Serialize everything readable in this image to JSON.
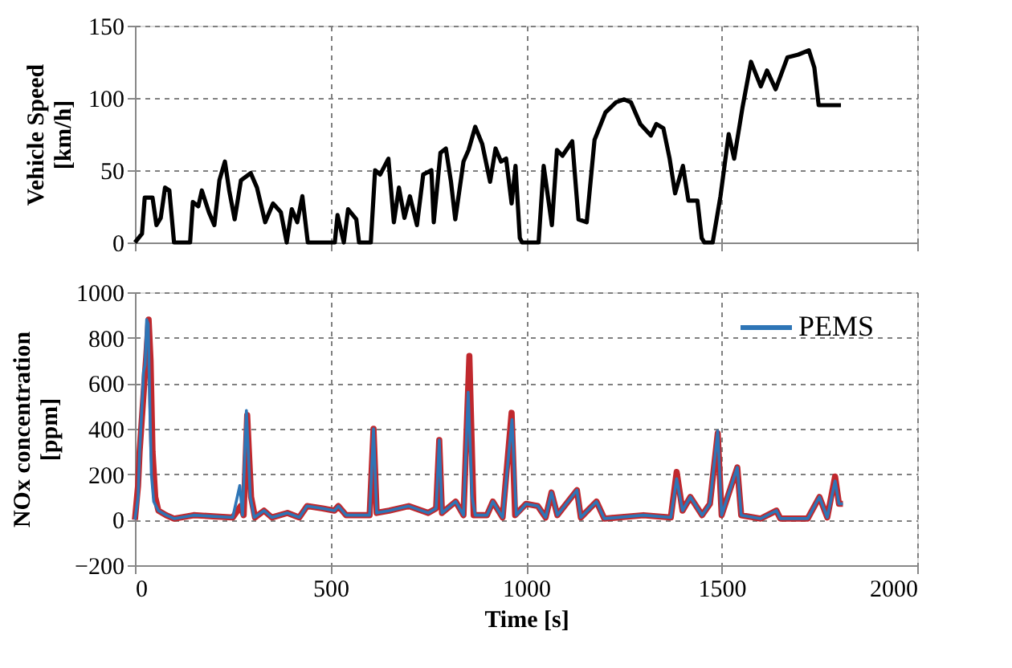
{
  "chart_data": [
    {
      "type": "line",
      "ylabel": "Vehicle Speed [km/h]",
      "xlim": [
        0,
        2000
      ],
      "xticks": [
        0,
        500,
        1000,
        1500,
        2000
      ],
      "ylim": [
        0,
        150
      ],
      "yticks": [
        0,
        50,
        100,
        150
      ],
      "grid": true,
      "tick_labels": "y",
      "line_style": "solid",
      "marker": "none",
      "series": [
        {
          "color": "#000000",
          "x": [
            0,
            18,
            25,
            45,
            55,
            66,
            77,
            88,
            100,
            141,
            148,
            162,
            171,
            189,
            203,
            216,
            230,
            241,
            255,
            271,
            296,
            312,
            333,
            353,
            373,
            388,
            401,
            415,
            428,
            442,
            511,
            518,
            534,
            545,
            566,
            573,
            603,
            614,
            627,
            648,
            662,
            675,
            689,
            703,
            721,
            737,
            758,
            764,
            781,
            795,
            808,
            819,
            840,
            853,
            870,
            888,
            908,
            922,
            936,
            949,
            963,
            973,
            984,
            990,
            1032,
            1045,
            1066,
            1079,
            1093,
            1118,
            1134,
            1155,
            1175,
            1203,
            1230,
            1251,
            1268,
            1292,
            1319,
            1333,
            1351,
            1367,
            1381,
            1401,
            1415,
            1438,
            1449,
            1456,
            1477,
            1497,
            1518,
            1532,
            1553,
            1575,
            1600,
            1616,
            1638,
            1668,
            1696,
            1723,
            1737,
            1748,
            1805
          ],
          "values": [
            0,
            6,
            31,
            31,
            12,
            17,
            38,
            36,
            0,
            0,
            28,
            25,
            36,
            21,
            12,
            43,
            56,
            36,
            16,
            43,
            48,
            38,
            14,
            27,
            21,
            0,
            23,
            14,
            32,
            0,
            0,
            19,
            0,
            23,
            16,
            0,
            0,
            50,
            47,
            58,
            14,
            38,
            17,
            32,
            12,
            47,
            50,
            14,
            62,
            65,
            42,
            16,
            56,
            64,
            80,
            68,
            42,
            65,
            56,
            58,
            27,
            53,
            3,
            0,
            0,
            53,
            12,
            64,
            60,
            70,
            16,
            14,
            71,
            90,
            97,
            99,
            97,
            82,
            74,
            82,
            79,
            58,
            34,
            53,
            29,
            29,
            3,
            0,
            0,
            32,
            75,
            58,
            93,
            125,
            108,
            119,
            106,
            128,
            130,
            133,
            121,
            95,
            95
          ]
        }
      ]
    },
    {
      "type": "line",
      "xlabel": "Time [s]",
      "ylabel": "NOx concentration [ppm]",
      "xlim": [
        0,
        2000
      ],
      "xticks": [
        0,
        500,
        1000,
        1500,
        2000
      ],
      "ylim": [
        -200,
        1000
      ],
      "yticks": [
        -200,
        0,
        200,
        400,
        600,
        800,
        1000
      ],
      "grid": true,
      "legend": "top right",
      "line_style": "solid",
      "marker": "none",
      "series": [
        {
          "color": "#c0282d",
          "x": [
            0,
            8,
            12,
            18,
            24,
            29,
            35,
            40,
            45,
            52,
            60,
            80,
            100,
            150,
            200,
            250,
            270,
            278,
            287,
            297,
            307,
            330,
            350,
            390,
            420,
            440,
            480,
            510,
            520,
            540,
            600,
            610,
            618,
            650,
            700,
            750,
            770,
            778,
            785,
            820,
            840,
            855,
            866,
            900,
            915,
            940,
            963,
            972,
            1000,
            1030,
            1050,
            1065,
            1080,
            1130,
            1140,
            1180,
            1200,
            1300,
            1370,
            1385,
            1400,
            1420,
            1450,
            1470,
            1490,
            1500,
            1540,
            1550,
            1600,
            1640,
            1650,
            1720,
            1750,
            1770,
            1790,
            1800,
            1810
          ],
          "values": [
            0,
            150,
            300,
            450,
            600,
            720,
            880,
            700,
            300,
            100,
            40,
            20,
            5,
            20,
            15,
            10,
            60,
            20,
            460,
            100,
            10,
            40,
            10,
            30,
            10,
            60,
            50,
            40,
            60,
            20,
            20,
            400,
            30,
            40,
            60,
            30,
            50,
            350,
            30,
            80,
            20,
            720,
            20,
            20,
            80,
            10,
            470,
            20,
            70,
            60,
            10,
            120,
            20,
            130,
            10,
            80,
            5,
            20,
            10,
            210,
            40,
            100,
            20,
            70,
            380,
            20,
            230,
            20,
            5,
            40,
            5,
            5,
            100,
            10,
            190,
            70,
            70
          ]
        },
        {
          "name": "PEMS",
          "color": "#2e75b6",
          "x": [
            0,
            8,
            12,
            18,
            22,
            26,
            30,
            34,
            38,
            42,
            48,
            60,
            80,
            100,
            150,
            200,
            250,
            268,
            275,
            285,
            295,
            305,
            330,
            350,
            390,
            420,
            440,
            480,
            510,
            520,
            540,
            600,
            610,
            618,
            650,
            700,
            750,
            770,
            778,
            785,
            820,
            840,
            852,
            862,
            870,
            900,
            915,
            940,
            964,
            975,
            1000,
            1030,
            1050,
            1065,
            1080,
            1130,
            1140,
            1180,
            1200,
            1300,
            1370,
            1385,
            1400,
            1420,
            1450,
            1470,
            1490,
            1500,
            1540,
            1550,
            1600,
            1640,
            1650,
            1720,
            1750,
            1770,
            1790,
            1800,
            1810
          ],
          "values": [
            0,
            100,
            300,
            500,
            650,
            680,
            880,
            860,
            500,
            200,
            80,
            40,
            20,
            5,
            20,
            15,
            10,
            150,
            20,
            480,
            100,
            10,
            40,
            10,
            30,
            10,
            60,
            50,
            40,
            60,
            20,
            20,
            400,
            30,
            40,
            60,
            30,
            50,
            350,
            30,
            80,
            20,
            560,
            100,
            20,
            20,
            80,
            10,
            440,
            20,
            70,
            60,
            10,
            120,
            20,
            130,
            10,
            80,
            5,
            20,
            10,
            180,
            40,
            100,
            20,
            70,
            390,
            20,
            230,
            20,
            5,
            40,
            5,
            5,
            100,
            10,
            170,
            70,
            70
          ]
        }
      ]
    }
  ]
}
